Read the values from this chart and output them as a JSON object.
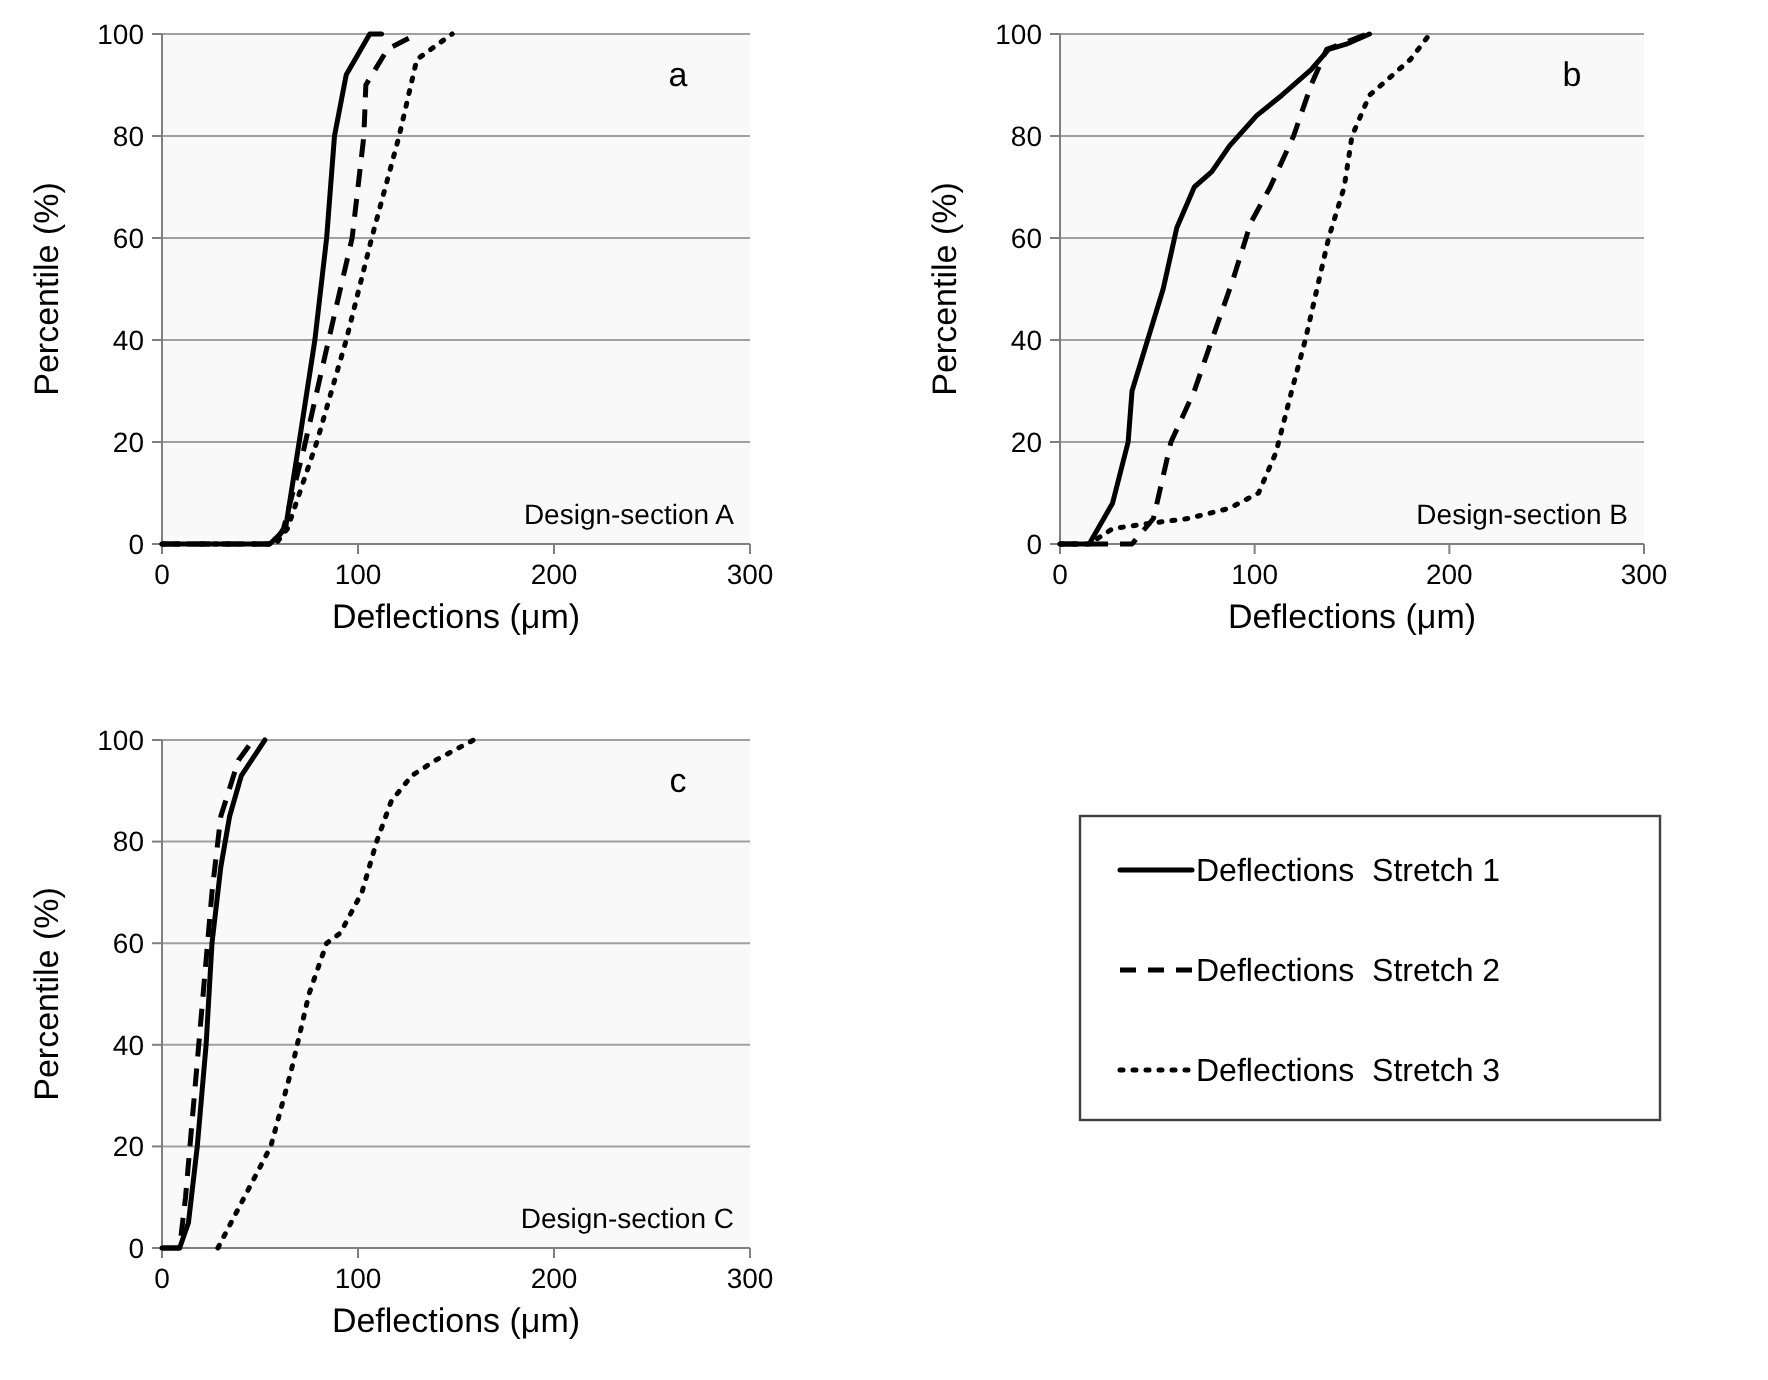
{
  "chart_data": [
    {
      "type": "line",
      "xlabel": "Deflections (μm)",
      "ylabel": "Percentile (%)",
      "annotations": [
        "a",
        "Design-section A"
      ],
      "xlim": [
        0,
        300
      ],
      "xticks": [
        0,
        100,
        200,
        300
      ],
      "ylim": [
        0,
        100
      ],
      "yticks": [
        0,
        20,
        40,
        60,
        80,
        100
      ],
      "grid": "y",
      "series": [
        {
          "color": "#000000",
          "line_style": "solid",
          "x": [
            0,
            55,
            63,
            70,
            78,
            84,
            88,
            94,
            106,
            112
          ],
          "values": [
            0,
            0,
            3,
            20,
            40,
            60,
            80,
            92,
            100,
            100
          ]
        },
        {
          "color": "#000000",
          "line_style": "dashed",
          "x": [
            0,
            57,
            62,
            72,
            85,
            97,
            103,
            104,
            115,
            130
          ],
          "values": [
            0,
            0,
            3,
            18,
            40,
            60,
            80,
            90,
            97,
            100
          ]
        },
        {
          "color": "#000000",
          "line_style": "dotted",
          "x": [
            0,
            58,
            64,
            79,
            94,
            107,
            121,
            130,
            148
          ],
          "values": [
            0,
            0,
            3,
            20,
            40,
            60,
            80,
            95,
            100
          ]
        }
      ]
    },
    {
      "type": "line",
      "xlabel": "Deflections (μm)",
      "ylabel": "Percentile (%)",
      "annotations": [
        "b",
        "Design-section B"
      ],
      "xlim": [
        0,
        300
      ],
      "xticks": [
        0,
        100,
        200,
        300
      ],
      "ylim": [
        0,
        100
      ],
      "yticks": [
        0,
        20,
        40,
        60,
        80,
        100
      ],
      "grid": "y",
      "series": [
        {
          "color": "#000000",
          "line_style": "solid",
          "x": [
            0,
            15,
            27,
            35,
            37,
            45,
            53,
            60,
            69,
            78,
            87,
            101,
            114,
            129,
            138,
            147,
            159
          ],
          "values": [
            0,
            0,
            8,
            20,
            30,
            40,
            50,
            62,
            70,
            73,
            78,
            84,
            88,
            93,
            97,
            98,
            100
          ]
        },
        {
          "color": "#000000",
          "line_style": "dashed",
          "x": [
            0,
            37,
            48,
            57,
            69,
            78,
            89,
            98,
            108,
            120,
            129,
            137,
            158
          ],
          "values": [
            0,
            0,
            5,
            20,
            30,
            40,
            52,
            63,
            70,
            80,
            90,
            97,
            100
          ]
        },
        {
          "color": "#000000",
          "line_style": "dotted",
          "x": [
            0,
            15,
            27,
            45,
            66,
            87,
            102,
            111,
            119,
            126,
            132,
            138,
            146,
            150,
            159,
            168,
            180,
            190
          ],
          "values": [
            0,
            0,
            3,
            4,
            5,
            7,
            10,
            18,
            30,
            40,
            50,
            60,
            70,
            80,
            88,
            91,
            95,
            100
          ]
        }
      ]
    },
    {
      "type": "line",
      "xlabel": "Deflections (μm)",
      "ylabel": "Percentile (%)",
      "annotations": [
        "c",
        "Design-section C"
      ],
      "xlim": [
        0,
        300
      ],
      "xticks": [
        0,
        100,
        200,
        300
      ],
      "ylim": [
        0,
        100
      ],
      "yticks": [
        0,
        20,
        40,
        60,
        80,
        100
      ],
      "grid": "y",
      "legend": "right",
      "series": [
        {
          "name": "Deflections  Stretch 1",
          "color": "#000000",
          "line_style": "solid",
          "x": [
            0,
            9,
            13.5,
            18,
            22.5,
            25.5,
            30,
            34.5,
            40.5,
            52.5
          ],
          "values": [
            0,
            0,
            5,
            20,
            40,
            60,
            75,
            85,
            93,
            100
          ]
        },
        {
          "name": "Deflections  Stretch 2",
          "color": "#000000",
          "line_style": "dashed",
          "x": [
            0,
            9,
            12,
            16.5,
            21,
            25.5,
            30,
            39,
            46.5
          ],
          "values": [
            0,
            0,
            10,
            30,
            50,
            70,
            85,
            96,
            100
          ]
        },
        {
          "name": "Deflections  Stretch 3",
          "color": "#000000",
          "line_style": "dotted",
          "x": [
            28.5,
            42,
            55.5,
            66,
            75,
            84,
            91,
            102,
            109.5,
            117,
            127.5,
            139.5,
            159
          ],
          "values": [
            0,
            10,
            20,
            35,
            50,
            60,
            62,
            70,
            80,
            88,
            93,
            96,
            100
          ]
        }
      ]
    }
  ]
}
